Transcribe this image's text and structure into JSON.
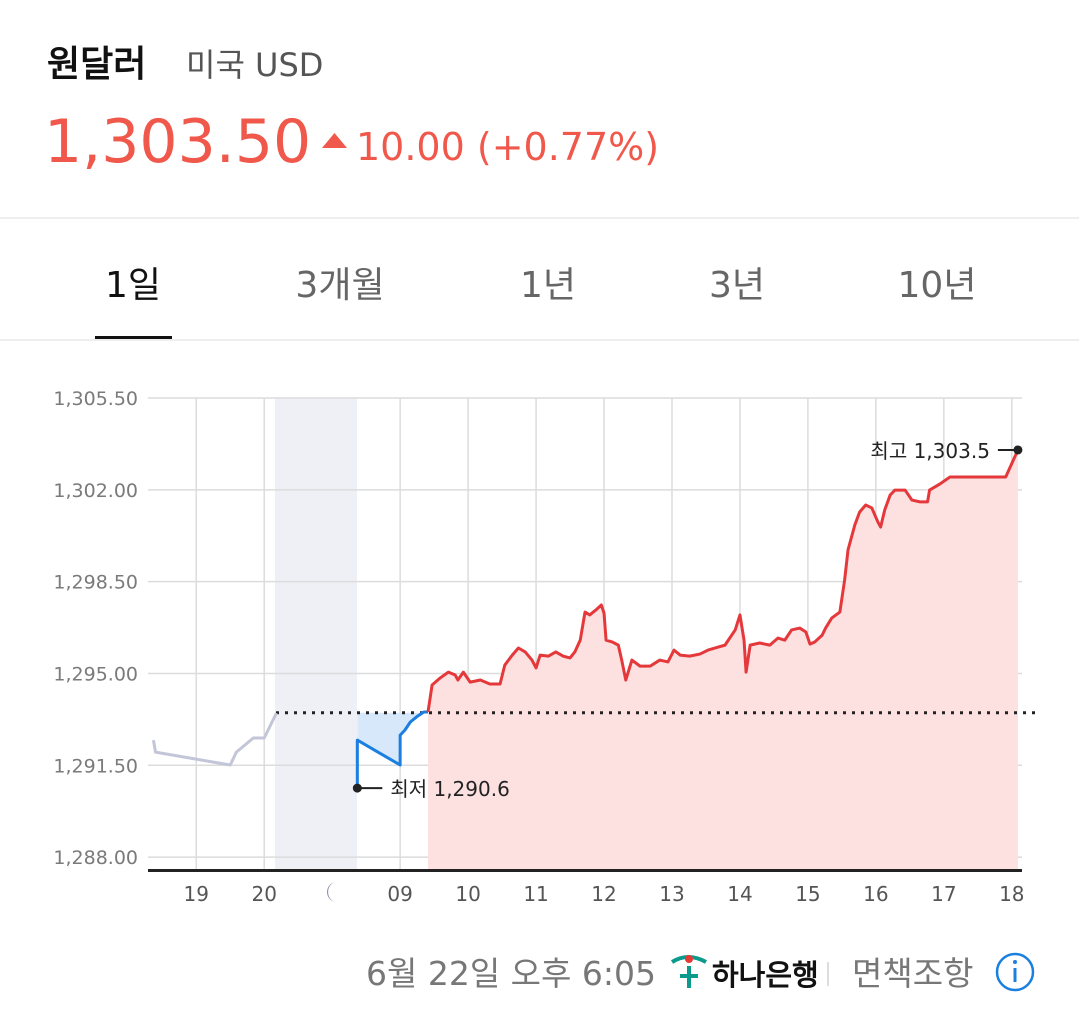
{
  "header": {
    "title": "원달러",
    "subtitle": "미국 USD",
    "price": "1,303.50",
    "change": "10.00 (+0.77%)"
  },
  "tabs": [
    "1일",
    "3개월",
    "1년",
    "3년",
    "10년"
  ],
  "chart_data": {
    "type": "line",
    "xlim": [
      -0.71,
      12.15
    ],
    "ylim": [
      1287.47,
      1305.5
    ],
    "xticks": [
      {
        "value": 0,
        "label": "19"
      },
      {
        "value": 1,
        "label": "20"
      },
      {
        "value": 3,
        "label": "09"
      },
      {
        "value": 4,
        "label": "10"
      },
      {
        "value": 5,
        "label": "11"
      },
      {
        "value": 6,
        "label": "12"
      },
      {
        "value": 7,
        "label": "13"
      },
      {
        "value": 8,
        "label": "14"
      },
      {
        "value": 9,
        "label": "15"
      },
      {
        "value": 10,
        "label": "16"
      },
      {
        "value": 11,
        "label": "17"
      },
      {
        "value": 12,
        "label": "18"
      }
    ],
    "yticks": [
      {
        "value": 1305.5,
        "label": "1,305.50"
      },
      {
        "value": 1302,
        "label": "1,302.00"
      },
      {
        "value": 1298.5,
        "label": "1,298.50"
      },
      {
        "value": 1295,
        "label": "1,295.00"
      },
      {
        "value": 1291.5,
        "label": "1,291.50"
      },
      {
        "value": 1288,
        "label": "1,288.00"
      }
    ],
    "grid": true,
    "baseline": 1293.5,
    "series": [
      {
        "color": "#c3c6d8",
        "fill": null,
        "x": [
          -0.63,
          -0.6,
          0.5,
          0.59,
          0.84,
          1.0,
          1.18
        ],
        "values": [
          1292.46,
          1292.0,
          1291.51,
          1292.0,
          1292.54,
          1292.54,
          1293.49
        ]
      },
      {
        "color": "#1b7fe0",
        "fill": "#d7e8fb",
        "x": [
          2.37,
          2.37,
          3.0,
          3.0,
          3.07,
          3.15,
          3.26,
          3.35,
          3.41
        ],
        "values": [
          1290.63,
          1292.46,
          1291.51,
          1292.65,
          1292.84,
          1293.15,
          1293.38,
          1293.53,
          1293.53
        ]
      },
      {
        "color": "#e5383b",
        "fill": "#fde0e0",
        "x": [
          3.41,
          3.47,
          3.59,
          3.71,
          3.81,
          3.85,
          3.93,
          4.03,
          4.18,
          4.32,
          4.47,
          4.54,
          4.65,
          4.74,
          4.84,
          4.94,
          5.0,
          5.06,
          5.18,
          5.29,
          5.4,
          5.5,
          5.57,
          5.65,
          5.72,
          5.79,
          5.88,
          5.96,
          6.0,
          6.03,
          6.12,
          6.21,
          6.26,
          6.32,
          6.41,
          6.53,
          6.68,
          6.82,
          6.94,
          7.03,
          7.12,
          7.26,
          7.41,
          7.53,
          7.63,
          7.78,
          7.93,
          8.0,
          8.06,
          8.09,
          8.15,
          8.29,
          8.44,
          8.56,
          8.66,
          8.76,
          8.88,
          8.97,
          9.03,
          9.1,
          9.21,
          9.26,
          9.35,
          9.47,
          9.54,
          9.59,
          9.69,
          9.76,
          9.85,
          9.94,
          10.03,
          10.07,
          10.13,
          10.21,
          10.28,
          10.43,
          10.53,
          10.65,
          10.76,
          10.79,
          10.94,
          11.09,
          11.91,
          12.09
        ],
        "values": [
          1293.53,
          1294.56,
          1294.83,
          1295.05,
          1294.94,
          1294.75,
          1295.05,
          1294.67,
          1294.75,
          1294.6,
          1294.6,
          1295.32,
          1295.7,
          1295.97,
          1295.82,
          1295.51,
          1295.21,
          1295.7,
          1295.66,
          1295.82,
          1295.66,
          1295.59,
          1295.82,
          1296.27,
          1297.34,
          1297.23,
          1297.42,
          1297.61,
          1297.3,
          1296.27,
          1296.2,
          1296.08,
          1295.51,
          1294.75,
          1295.51,
          1295.28,
          1295.28,
          1295.51,
          1295.44,
          1295.89,
          1295.7,
          1295.66,
          1295.74,
          1295.89,
          1295.97,
          1296.08,
          1296.66,
          1297.23,
          1296.27,
          1295.05,
          1296.08,
          1296.16,
          1296.08,
          1296.35,
          1296.27,
          1296.66,
          1296.73,
          1296.58,
          1296.12,
          1296.2,
          1296.46,
          1296.73,
          1297.11,
          1297.34,
          1298.56,
          1299.71,
          1300.66,
          1301.15,
          1301.42,
          1301.31,
          1300.77,
          1300.58,
          1301.23,
          1301.8,
          1301.99,
          1301.99,
          1301.61,
          1301.54,
          1301.54,
          1301.99,
          1302.22,
          1302.49,
          1302.49,
          1303.52
        ]
      }
    ],
    "annotations": [
      {
        "text": "최고 1,303.5",
        "x": 12.09,
        "y": 1303.52,
        "side": "left"
      },
      {
        "text": "최저 1,290.6",
        "x": 2.37,
        "y": 1290.63,
        "side": "right"
      }
    ]
  },
  "footer": {
    "timestamp": "6월 22일 오후 6:05",
    "bank": "하나은행",
    "disclaimer": "면책조항"
  }
}
